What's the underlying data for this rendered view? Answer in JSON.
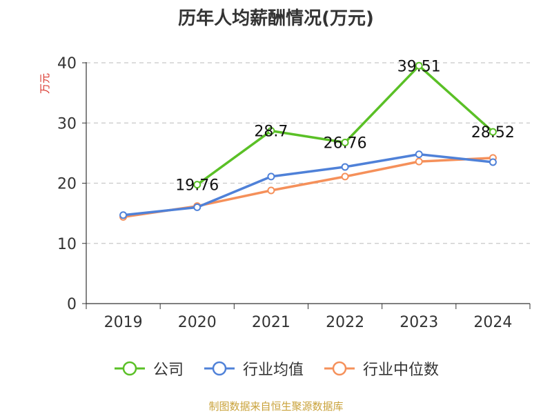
{
  "chart_data": {
    "type": "line",
    "title": "历年人均薪酬情况(万元)",
    "ylabel": "万元",
    "xlabel": "",
    "ylim": [
      0,
      40
    ],
    "yticks": [
      0,
      10,
      20,
      30,
      40
    ],
    "categories": [
      "2019",
      "2020",
      "2021",
      "2022",
      "2023",
      "2024"
    ],
    "grid": true,
    "legend_position": "bottom",
    "series": [
      {
        "name": "公司",
        "color": "#5ac026",
        "values": [
          null,
          19.76,
          28.7,
          26.76,
          39.51,
          28.52
        ],
        "labels": [
          "",
          "19.76",
          "28.7",
          "26.76",
          "39.51",
          "28.52"
        ]
      },
      {
        "name": "行业均值",
        "color": "#4f81d8",
        "values": [
          14.7,
          16.0,
          21.1,
          22.7,
          24.8,
          23.5
        ],
        "labels": []
      },
      {
        "name": "行业中位数",
        "color": "#f5905a",
        "values": [
          14.4,
          16.2,
          18.8,
          21.1,
          23.6,
          24.2
        ],
        "labels": []
      }
    ]
  },
  "footer": {
    "source": "制图数据来自恒生聚源数据库"
  }
}
